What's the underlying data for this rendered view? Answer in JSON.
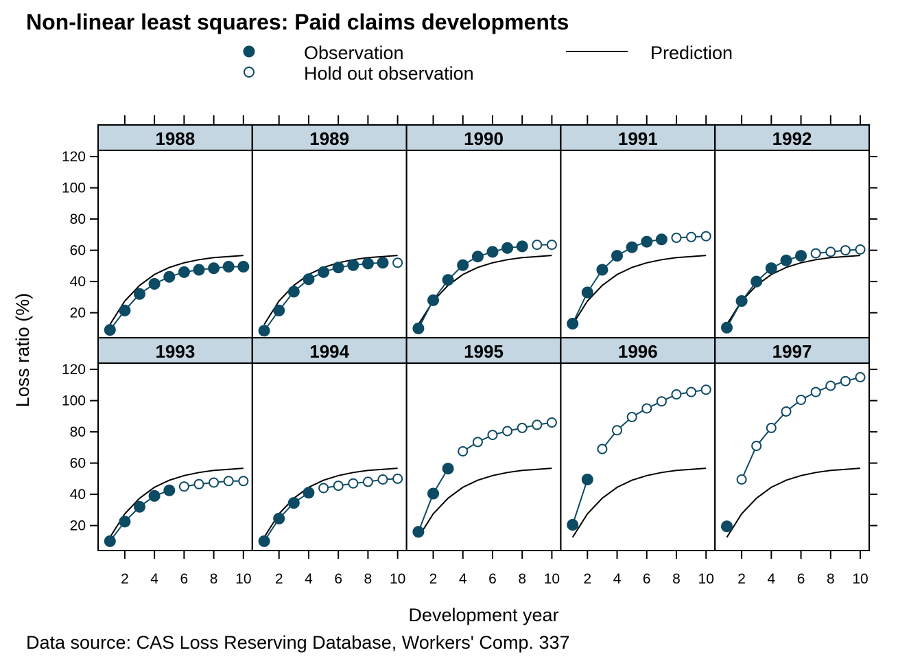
{
  "chart_data": {
    "type": "line",
    "title": "Non-linear least squares: Paid claims developments",
    "xlabel": "Development year",
    "ylabel": "Loss ratio (%)",
    "caption": "Data source: CAS Loss Reserving Database,  Workers' Comp. 337",
    "xlim": [
      0.2,
      10.6
    ],
    "ylim": [
      4,
      124
    ],
    "x_ticks": [
      2,
      4,
      6,
      8,
      10
    ],
    "y_ticks": [
      20,
      40,
      60,
      80,
      100,
      120
    ],
    "layout": "panels in 2 rows of 5; top row 1988-1992, bottom row 1993-1997",
    "legend": {
      "placement": "top",
      "items": [
        {
          "label": "Observation",
          "kind": "filled-point"
        },
        {
          "label": "Hold out observation",
          "kind": "open-point"
        },
        {
          "label": "Prediction",
          "kind": "line"
        }
      ]
    },
    "colors": {
      "observation": "#0d4a63",
      "prediction": "#000000",
      "strip": "#c3d6e1"
    },
    "prediction": [
      12.5,
      27.5,
      37.5,
      44.5,
      49,
      52,
      54,
      55.3,
      56,
      56.7
    ],
    "panels": [
      {
        "year": "1988",
        "observed": [
          9,
          21.5,
          32,
          38.5,
          43,
          46,
          47.5,
          48.5,
          49.5,
          49.5
        ],
        "n_observed": 10
      },
      {
        "year": "1989",
        "observed": [
          8.5,
          21.5,
          33.5,
          41.5,
          46,
          49,
          50.5,
          51.5,
          52,
          52
        ],
        "n_observed": 9
      },
      {
        "year": "1990",
        "observed": [
          10,
          28,
          41,
          50.5,
          56,
          59,
          61.5,
          62.5,
          63.5,
          63.5
        ],
        "n_observed": 8
      },
      {
        "year": "1991",
        "observed": [
          13,
          33,
          47.5,
          56.5,
          62,
          65.5,
          67,
          68,
          68.5,
          69
        ],
        "n_observed": 7
      },
      {
        "year": "1992",
        "observed": [
          10.5,
          27.5,
          40,
          48.5,
          53.5,
          56.5,
          58,
          59,
          60,
          60.5
        ],
        "n_observed": 6
      },
      {
        "year": "1993",
        "observed": [
          10,
          22.5,
          32,
          39,
          42.5,
          45,
          46.5,
          47.5,
          48.5,
          48.5
        ],
        "n_observed": 5
      },
      {
        "year": "1994",
        "observed": [
          10,
          24.5,
          34.5,
          41,
          44,
          45.5,
          47,
          48,
          49.5,
          50
        ],
        "n_observed": 4
      },
      {
        "year": "1995",
        "observed": [
          16,
          40.5,
          56.5,
          67.5,
          73.5,
          78,
          80.5,
          82.5,
          84.5,
          86
        ],
        "n_observed": 3
      },
      {
        "year": "1996",
        "observed": [
          20.5,
          49.5,
          69,
          81,
          89.5,
          95,
          99.5,
          104,
          105.5,
          107
        ],
        "n_observed": 2
      },
      {
        "year": "1997",
        "observed": [
          19.5,
          49.5,
          71,
          82.5,
          93,
          100.5,
          105.5,
          109.5,
          112.5,
          115
        ],
        "n_observed": 1
      }
    ]
  }
}
